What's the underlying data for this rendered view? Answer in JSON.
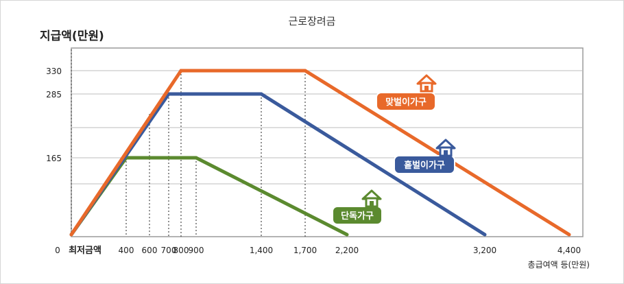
{
  "chart_data": {
    "type": "line",
    "title": "근로장려금",
    "ylabel": "지급액(만원)",
    "xlabel": "총급여액 등(만원)",
    "x_ticks": [
      "400",
      "600",
      "700",
      "800",
      "900",
      "1,400",
      "1,700",
      "2,200",
      "3,200",
      "4,400"
    ],
    "y_ticks": [
      "330",
      "285",
      "165"
    ],
    "origin_label": "0",
    "min_wage_label": "최저금액",
    "series": [
      {
        "name": "맞벌이가구",
        "color": "#e8692a",
        "points": [
          [
            0,
            0
          ],
          [
            800,
            330
          ],
          [
            1700,
            330
          ],
          [
            4400,
            0
          ]
        ]
      },
      {
        "name": "홑벌이가구",
        "color": "#3a5a9c",
        "points": [
          [
            0,
            0
          ],
          [
            700,
            285
          ],
          [
            1400,
            285
          ],
          [
            3200,
            0
          ]
        ]
      },
      {
        "name": "단독가구",
        "color": "#5b8a2f",
        "points": [
          [
            0,
            0
          ],
          [
            400,
            165
          ],
          [
            900,
            165
          ],
          [
            2200,
            0
          ]
        ]
      }
    ]
  }
}
